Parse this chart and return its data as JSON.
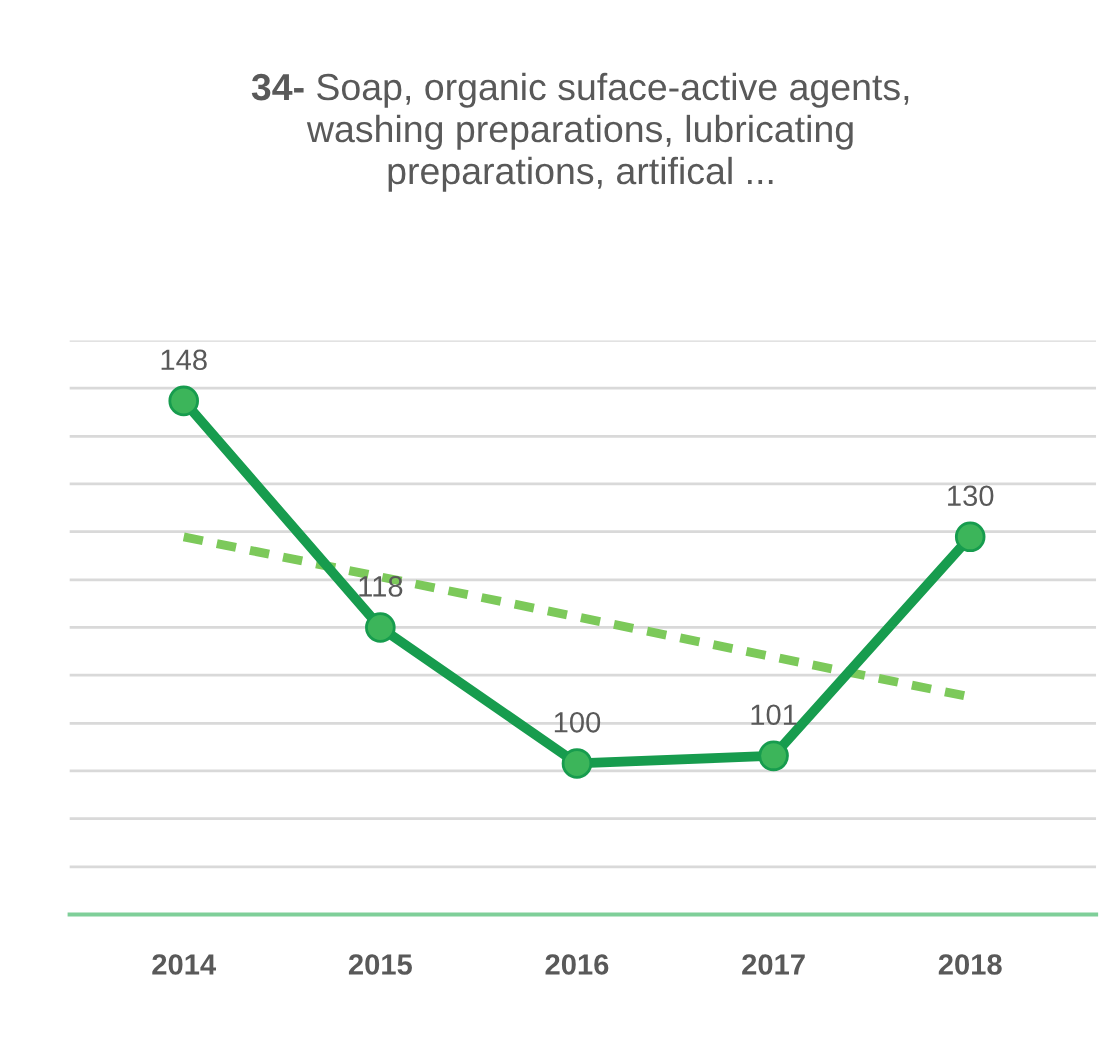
{
  "chart_data": {
    "type": "line",
    "title": "34- Soap, organic suface-active agents,\nwashing preparations, lubricating\npreparations, artifical ...",
    "categories": [
      "2014",
      "2015",
      "2016",
      "2017",
      "2018"
    ],
    "series": [
      {
        "color": "#179c4e",
        "values": [
          148,
          118,
          100,
          101,
          130
        ],
        "value_labels": [
          "148",
          "118",
          "100",
          "101",
          "130"
        ],
        "marker": "circle",
        "line_style": "solid"
      },
      {
        "type": "line",
        "color": "#7cc95a",
        "values": [
          130.0,
          124.7,
          119.4,
          114.1,
          108.8
        ],
        "marker": "none",
        "line_style": "dashed"
      }
    ],
    "ylim": [
      80,
      156
    ],
    "yticks": [
      {
        "value": 80,
        "label": null
      },
      {
        "value": 86.3,
        "label": null
      },
      {
        "value": 92.7,
        "label": null
      },
      {
        "value": 99,
        "label": null
      },
      {
        "value": 105.3,
        "label": null
      },
      {
        "value": 111.7,
        "label": null
      },
      {
        "value": 118,
        "label": null
      },
      {
        "value": 124.3,
        "label": null
      },
      {
        "value": 130.7,
        "label": null
      },
      {
        "value": 137,
        "label": null
      },
      {
        "value": 143.3,
        "label": null
      },
      {
        "value": 149.7,
        "label": null
      },
      {
        "value": 156,
        "label": null
      }
    ],
    "grid": "y",
    "legend": false,
    "tick_labels": "x"
  }
}
